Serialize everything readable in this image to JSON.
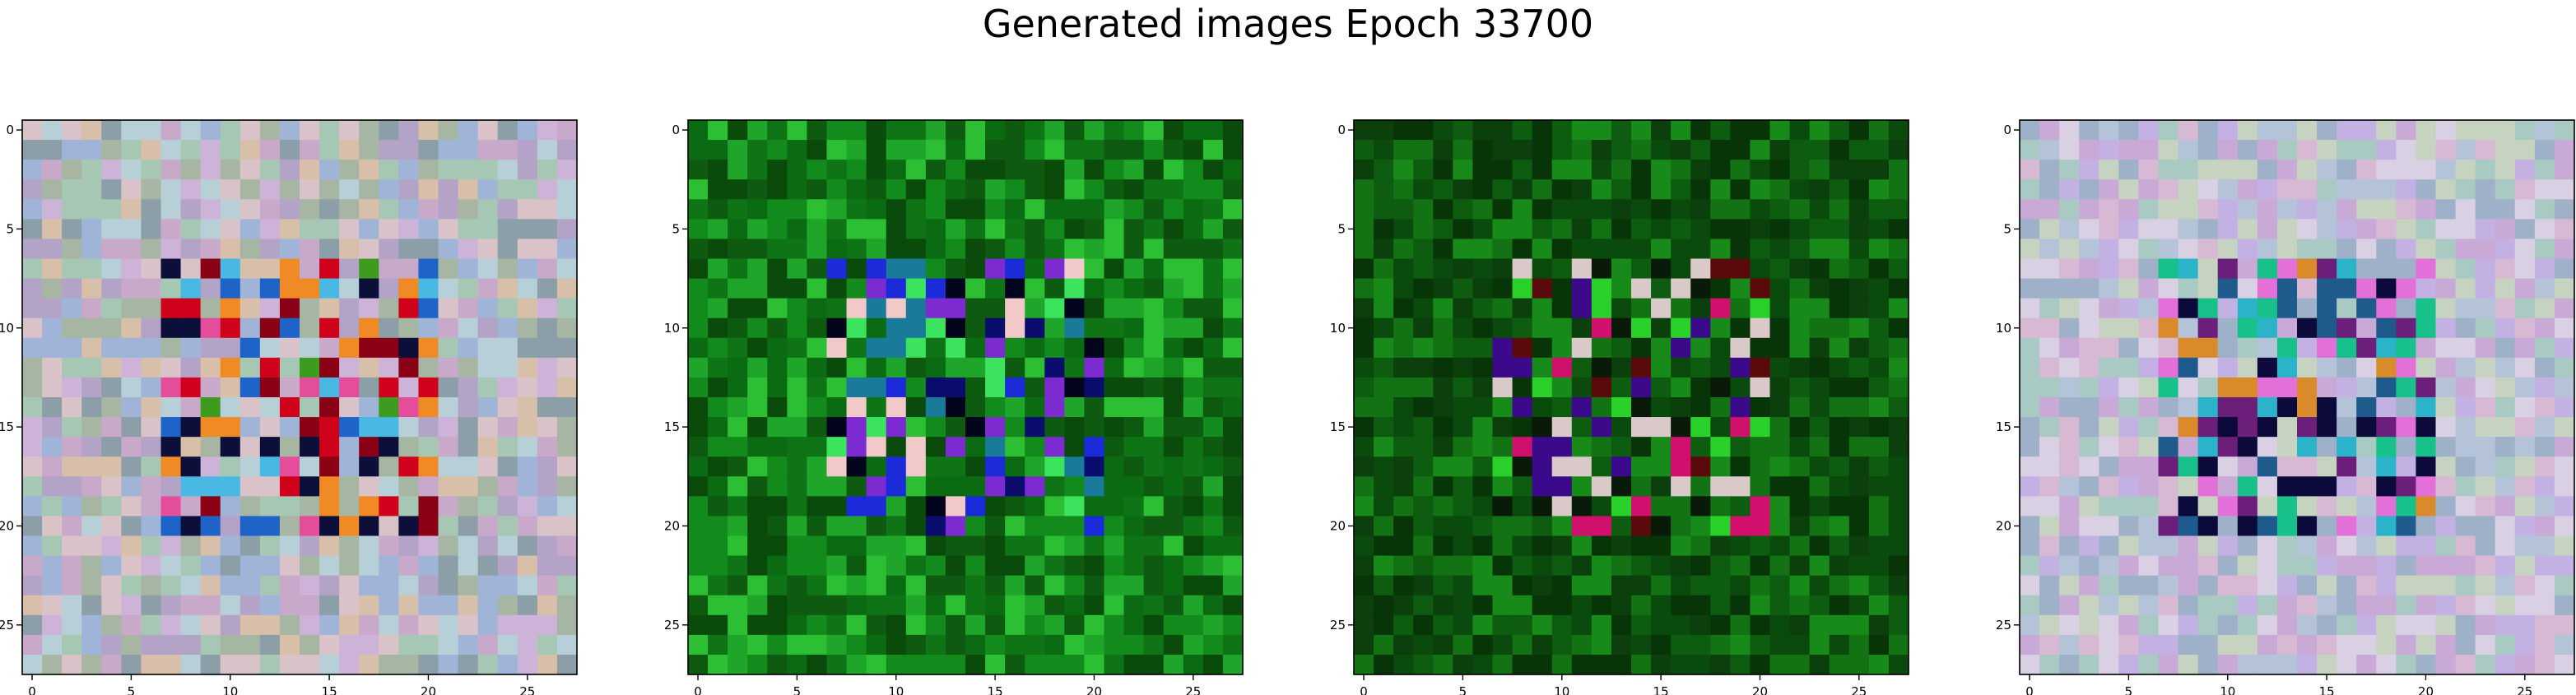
{
  "figure": {
    "title": "Generated images Epoch 33700"
  },
  "chart_data": [
    {
      "type": "heatmap",
      "image_grid": [
        28,
        28
      ],
      "xlim": [
        -0.5,
        27.5
      ],
      "ylim": [
        27.5,
        -0.5
      ],
      "xticks": [
        0,
        5,
        10,
        15,
        20,
        25
      ],
      "yticks": [
        0,
        5,
        10,
        15,
        20,
        25
      ],
      "xtick_labels": [
        "0",
        "5",
        "10",
        "15",
        "20",
        "25"
      ],
      "ytick_labels": [
        "0",
        "5",
        "10",
        "15",
        "20",
        "25"
      ],
      "palette": [
        "#a7b6a3",
        "#c9a9c9",
        "#b7cfd6",
        "#d7bfa9",
        "#9fb4d7",
        "#cdb3d8",
        "#a7c7b5",
        "#d9c3c9",
        "#8c9fa8",
        "#b2a3c7"
      ],
      "highlight_colors": [
        "#d0021b",
        "#8a0014",
        "#e44d9a",
        "#1e63c7",
        "#0b0f3a",
        "#49b9e3",
        "#3d9c1f",
        "#f08a24"
      ]
    },
    {
      "type": "heatmap",
      "image_grid": [
        28,
        28
      ],
      "xlim": [
        -0.5,
        27.5
      ],
      "ylim": [
        27.5,
        -0.5
      ],
      "xticks": [
        0,
        5,
        10,
        15,
        20,
        25
      ],
      "yticks": [
        0,
        5,
        10,
        15,
        20,
        25
      ],
      "xtick_labels": [
        "0",
        "5",
        "10",
        "15",
        "20",
        "25"
      ],
      "ytick_labels": [
        "0",
        "5",
        "10",
        "15",
        "20",
        "25"
      ],
      "palette": [
        "#0b6b12",
        "#138a1c",
        "#0e5a10",
        "#1fa52a",
        "#0a4a0b",
        "#2cbf33",
        "#0f7416"
      ],
      "highlight_colors": [
        "#1b2bd9",
        "#0a0d6e",
        "#03051c",
        "#3ce35c",
        "#7b2bd0",
        "#f2c9c9",
        "#1a7a9a"
      ]
    },
    {
      "type": "heatmap",
      "image_grid": [
        28,
        28
      ],
      "xlim": [
        -0.5,
        27.5
      ],
      "ylim": [
        27.5,
        -0.5
      ],
      "xticks": [
        0,
        5,
        10,
        15,
        20,
        25
      ],
      "yticks": [
        0,
        5,
        10,
        15,
        20,
        25
      ],
      "xtick_labels": [
        "0",
        "5",
        "10",
        "15",
        "20",
        "25"
      ],
      "ytick_labels": [
        "0",
        "5",
        "10",
        "15",
        "20",
        "25"
      ],
      "palette": [
        "#0a4a0c",
        "#0d5c10",
        "#0b3f0b",
        "#127214",
        "#083508",
        "#188a1a"
      ],
      "highlight_colors": [
        "#0a1a08",
        "#5a0a0a",
        "#d9c9c9",
        "#3a0a8a",
        "#2bd12b",
        "#d1106e"
      ]
    },
    {
      "type": "heatmap",
      "image_grid": [
        28,
        28
      ],
      "xlim": [
        -0.5,
        27.5
      ],
      "ylim": [
        27.5,
        -0.5
      ],
      "xticks": [
        0,
        5,
        10,
        15,
        20,
        25
      ],
      "yticks": [
        0,
        5,
        10,
        15,
        20,
        25
      ],
      "xtick_labels": [
        "0",
        "5",
        "10",
        "15",
        "20",
        "25"
      ],
      "ytick_labels": [
        "0",
        "5",
        "10",
        "15",
        "20",
        "25"
      ],
      "palette": [
        "#c9a9d6",
        "#b5c3d9",
        "#d7b9d3",
        "#a9c9c3",
        "#c3b1e3",
        "#d9d0e3",
        "#9fb1c9",
        "#c7d3c1"
      ],
      "highlight_colors": [
        "#0b0a3a",
        "#2bb3c9",
        "#e36fd9",
        "#1e5a8c",
        "#6b1f7a",
        "#d98a2b",
        "#18c08a"
      ]
    }
  ]
}
